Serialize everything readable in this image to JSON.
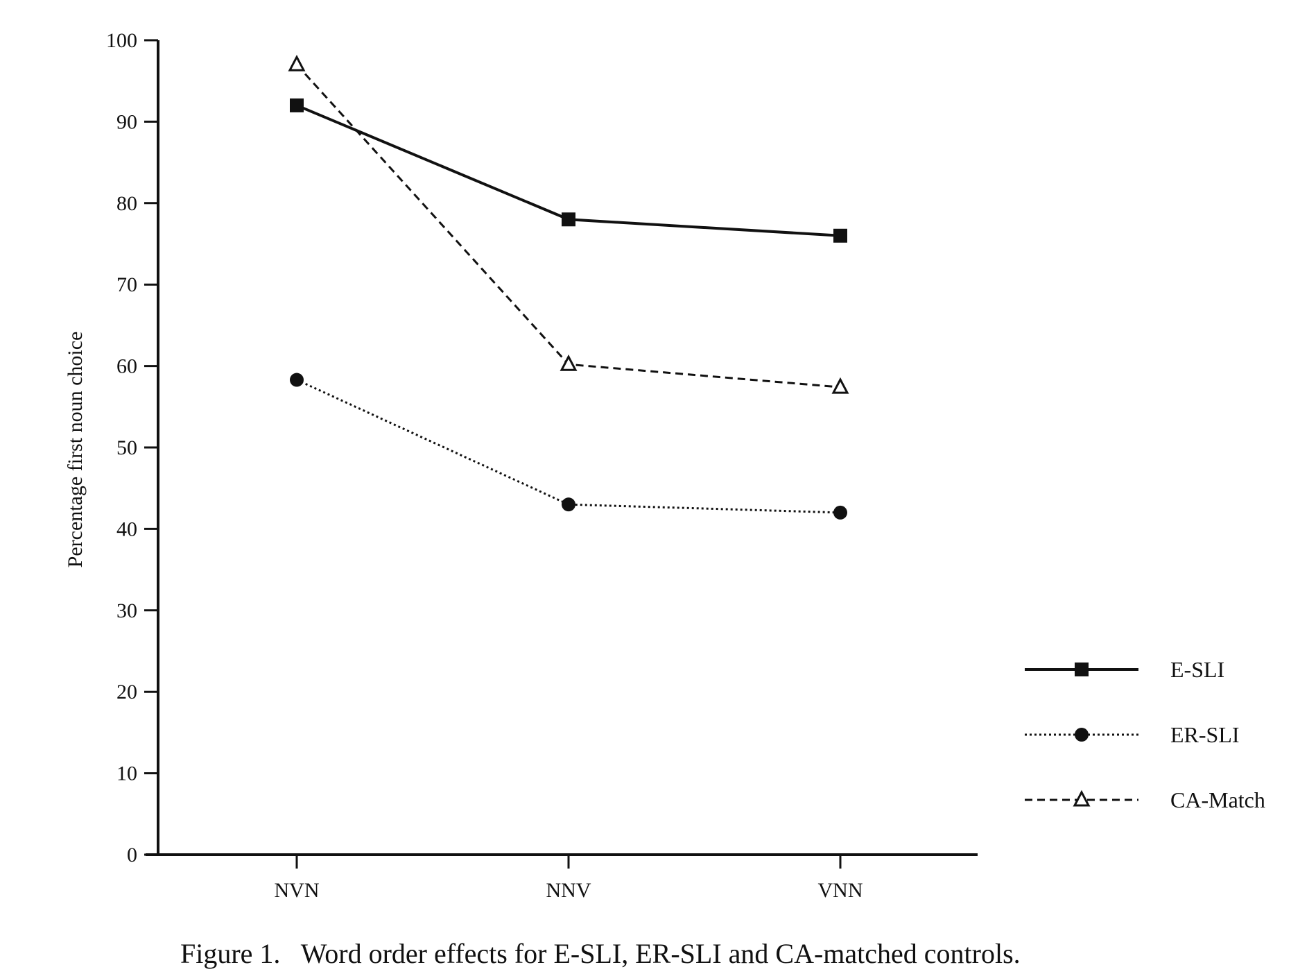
{
  "chart_data": {
    "type": "line",
    "title": "",
    "caption": "Figure 1.   Word order effects for E-SLI, ER-SLI and CA-matched controls.",
    "xlabel": "",
    "ylabel": "Percentage first noun choice",
    "categories": [
      "NVN",
      "NNV",
      "VNN"
    ],
    "ylim": [
      0,
      100
    ],
    "yticks": [
      0,
      10,
      20,
      30,
      40,
      50,
      60,
      70,
      80,
      90,
      100
    ],
    "grid": false,
    "legend_position": "right",
    "series": [
      {
        "name": "E-SLI",
        "values": [
          92,
          78,
          76
        ],
        "marker": "square",
        "line_style": "solid",
        "color": "#111111"
      },
      {
        "name": "ER-SLI",
        "values": [
          58.3,
          43,
          42
        ],
        "marker": "circle",
        "line_style": "dotted",
        "color": "#111111"
      },
      {
        "name": "CA-Match",
        "values": [
          97,
          60.2,
          57.4
        ],
        "marker": "triangle",
        "line_style": "dashed",
        "color": "#111111"
      }
    ]
  }
}
